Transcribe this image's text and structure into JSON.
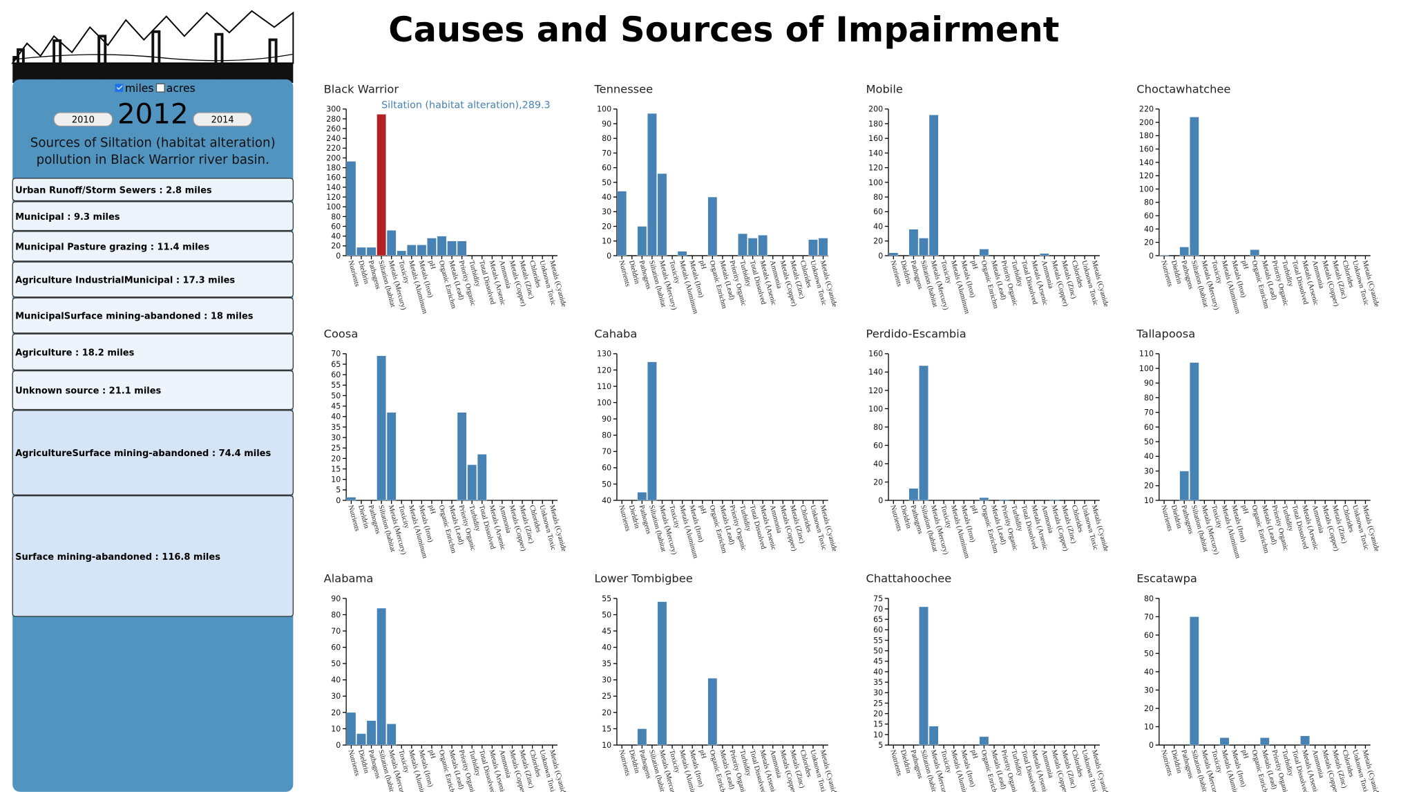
{
  "header": {
    "title": "Causes and Sources of Impairment"
  },
  "sidebar": {
    "units": [
      "miles",
      "acres"
    ],
    "year": "2012",
    "prev_year": "2010",
    "next_year": "2014",
    "description": "Sources of Siltation (habitat alteration) pollution in Black Warrior river basin.",
    "sources": [
      "Urban Runoff/Storm Sewers : 2.8 miles",
      "Municipal : 9.3 miles",
      "Municipal Pasture grazing : 11.4 miles",
      "Agriculture IndustrialMunicipal : 17.3 miles",
      "MunicipalSurface mining-abandoned : 18 miles",
      "Agriculture : 18.2 miles",
      "Unknown source : 21.1 miles",
      "AgricultureSurface mining-abandoned : 74.4 miles",
      "Surface mining-abandoned : 116.8 miles"
    ]
  },
  "categories": [
    "Nutrients",
    "Dieldrin",
    "Pathogens",
    "Siltation (habitat",
    "Metals (Mercury)",
    "Toxicity",
    "Metals (Aluminum",
    "Metals (Iron)",
    "pH",
    "Organic Enrichm",
    "Metals (Lead)",
    "Priority Organic",
    "Turbidity",
    "Total Dissolved",
    "Metals (Arsenic",
    "Ammonia",
    "Metals (Copper)",
    "Metals (Zinc)",
    "Chlorides",
    "Unknown Toxic",
    "Metals (Cyanide"
  ],
  "chart_data": [
    {
      "type": "bar",
      "title": "Black Warrior",
      "color": "#4682b4",
      "ylim": [
        0,
        300
      ],
      "yticks": [
        0,
        20,
        40,
        60,
        80,
        100,
        120,
        140,
        160,
        180,
        200,
        220,
        240,
        260,
        280,
        300
      ],
      "values": [
        193,
        17,
        17,
        289.3,
        52,
        10,
        22,
        22,
        36,
        40,
        30,
        30,
        null,
        null,
        null,
        null,
        null,
        null,
        null,
        null,
        null
      ],
      "highlight": {
        "category": "Siltation (habitat",
        "color": "#b22222",
        "label": "Siltation (habitat alteration),289.3"
      }
    },
    {
      "type": "bar",
      "title": "Tennessee",
      "color": "#4682b4",
      "ylim": [
        0,
        100
      ],
      "yticks": [
        0,
        10,
        20,
        30,
        40,
        50,
        60,
        70,
        80,
        90,
        100
      ],
      "values": [
        44,
        null,
        20,
        97,
        56,
        null,
        3,
        null,
        null,
        40,
        null,
        null,
        15,
        12,
        14,
        null,
        null,
        null,
        null,
        11,
        12
      ]
    },
    {
      "type": "bar",
      "title": "Mobile",
      "color": "#4682b4",
      "ylim": [
        0,
        200
      ],
      "yticks": [
        0,
        20,
        40,
        60,
        80,
        100,
        120,
        140,
        160,
        180,
        200
      ],
      "values": [
        4,
        null,
        36,
        24,
        192,
        null,
        null,
        null,
        null,
        9,
        null,
        null,
        null,
        null,
        null,
        3,
        null,
        null,
        null,
        null,
        null
      ]
    },
    {
      "type": "bar",
      "title": "Choctawhatchee",
      "color": "#4682b4",
      "ylim": [
        0,
        220
      ],
      "yticks": [
        0,
        20,
        40,
        60,
        80,
        100,
        120,
        140,
        160,
        180,
        200,
        220
      ],
      "values": [
        1,
        null,
        13,
        208,
        null,
        null,
        null,
        null,
        null,
        9,
        null,
        null,
        null,
        null,
        null,
        null,
        null,
        null,
        null,
        null,
        null
      ]
    },
    {
      "type": "bar",
      "title": "Coosa",
      "color": "#4682b4",
      "ylim": [
        0,
        70
      ],
      "yticks": [
        0,
        5,
        10,
        15,
        20,
        25,
        30,
        35,
        40,
        45,
        50,
        55,
        60,
        65,
        70
      ],
      "values": [
        1.5,
        null,
        null,
        69,
        42,
        null,
        null,
        null,
        null,
        null,
        null,
        42,
        17,
        22,
        null,
        null,
        null,
        null,
        null,
        null,
        null
      ]
    },
    {
      "type": "bar",
      "title": "Cahaba",
      "color": "#4682b4",
      "ylim": [
        40,
        130
      ],
      "yticks": [
        40,
        50,
        60,
        70,
        80,
        90,
        100,
        110,
        120,
        130
      ],
      "values": [
        null,
        null,
        45,
        125,
        null,
        null,
        null,
        null,
        null,
        null,
        null,
        null,
        null,
        null,
        null,
        null,
        null,
        null,
        null,
        null,
        null
      ]
    },
    {
      "type": "bar",
      "title": "Perdido-Escambia",
      "color": "#4682b4",
      "ylim": [
        0,
        160
      ],
      "yticks": [
        0,
        20,
        40,
        60,
        80,
        100,
        120,
        140,
        160
      ],
      "values": [
        null,
        null,
        13,
        147,
        null,
        null,
        null,
        null,
        null,
        3,
        null,
        1,
        null,
        null,
        null,
        null,
        1,
        null,
        null,
        null,
        null
      ]
    },
    {
      "type": "bar",
      "title": "Tallapoosa",
      "color": "#4682b4",
      "ylim": [
        10,
        110
      ],
      "yticks": [
        10,
        20,
        30,
        40,
        50,
        60,
        70,
        80,
        90,
        100,
        110
      ],
      "values": [
        null,
        null,
        30,
        104,
        null,
        null,
        null,
        null,
        null,
        null,
        null,
        null,
        null,
        null,
        null,
        null,
        null,
        null,
        null,
        null,
        null
      ]
    },
    {
      "type": "bar",
      "title": "Alabama",
      "color": "#4682b4",
      "ylim": [
        0,
        90
      ],
      "yticks": [
        0,
        10,
        20,
        30,
        40,
        50,
        60,
        70,
        80,
        90
      ],
      "values": [
        20,
        7,
        15,
        84,
        13,
        null,
        null,
        null,
        null,
        null,
        null,
        null,
        null,
        null,
        null,
        null,
        null,
        null,
        null,
        null,
        null
      ]
    },
    {
      "type": "bar",
      "title": "Lower Tombigbee",
      "color": "#4682b4",
      "ylim": [
        10,
        55
      ],
      "yticks": [
        10,
        15,
        20,
        25,
        30,
        35,
        40,
        45,
        50,
        55
      ],
      "values": [
        null,
        null,
        15,
        null,
        54,
        null,
        null,
        null,
        null,
        30.5,
        null,
        null,
        null,
        null,
        null,
        null,
        null,
        null,
        null,
        null,
        null
      ]
    },
    {
      "type": "bar",
      "title": "Chattahoochee",
      "color": "#4682b4",
      "ylim": [
        5,
        75
      ],
      "yticks": [
        5,
        10,
        15,
        20,
        25,
        30,
        35,
        40,
        45,
        50,
        55,
        60,
        65,
        70,
        75
      ],
      "values": [
        null,
        null,
        null,
        71,
        14,
        null,
        null,
        null,
        null,
        9,
        null,
        null,
        null,
        null,
        null,
        null,
        null,
        null,
        null,
        null,
        null
      ]
    },
    {
      "type": "bar",
      "title": "Escatawpa",
      "color": "#4682b4",
      "ylim": [
        0,
        80
      ],
      "yticks": [
        0,
        10,
        20,
        30,
        40,
        50,
        60,
        70,
        80
      ],
      "values": [
        null,
        null,
        null,
        70,
        null,
        null,
        4,
        null,
        null,
        null,
        4,
        null,
        null,
        null,
        5,
        null,
        null,
        null,
        null,
        null,
        null
      ]
    }
  ]
}
